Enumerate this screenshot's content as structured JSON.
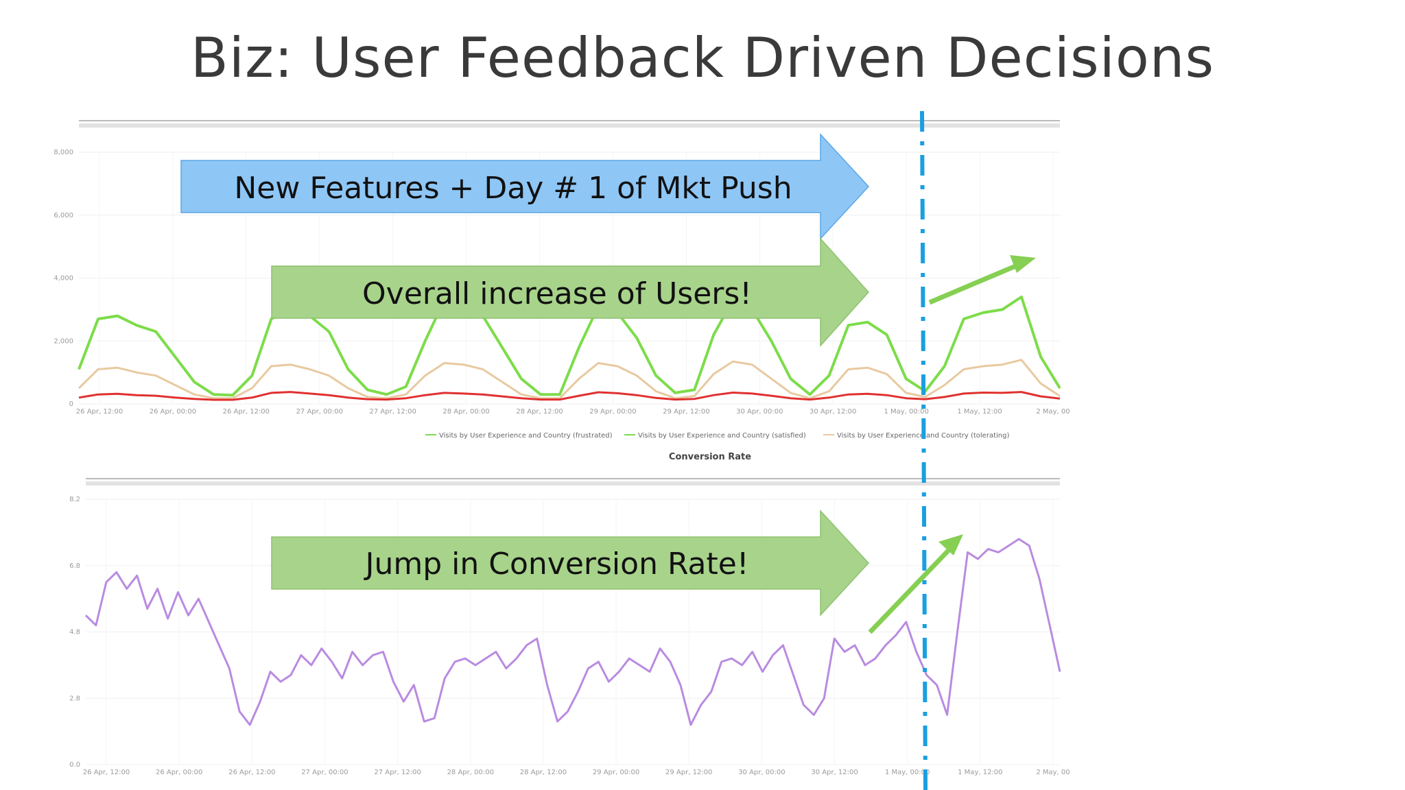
{
  "slide": {
    "title": "Biz: User Feedback Driven Decisions"
  },
  "callouts": [
    {
      "text": "New Features + Day # 1 of Mkt Push",
      "color": "#8ec6f5"
    },
    {
      "text": "Overall increase of Users!",
      "color": "#a8d38b"
    },
    {
      "text": "Jump in Conversion Rate!",
      "color": "#a8d38b"
    }
  ],
  "colors": {
    "frustrated": "#7ddc4a",
    "satisfied": "#e8c9a0",
    "tolerating": "#e03030",
    "conversion": "#b98be0",
    "marker": "#1a9fe0",
    "trend_arrow": "#86cf52"
  },
  "chart_data": [
    {
      "type": "line",
      "y_ticks": [
        "8,000",
        "6,000",
        "4,000",
        "2,000",
        "0"
      ],
      "ylim": [
        0,
        8000
      ],
      "x_ticks": [
        "26 Apr, 12:00",
        "26 Apr, 00:00",
        "26 Apr, 12:00",
        "27 Apr, 00:00",
        "27 Apr, 12:00",
        "28 Apr, 00:00",
        "28 Apr, 12:00",
        "29 Apr, 00:00",
        "29 Apr, 12:00",
        "30 Apr, 00:00",
        "30 Apr, 12:00",
        "1 May, 00:00",
        "1 May, 12:00",
        "2 May, 00"
      ],
      "legend": [
        "Visits by User Experience and Country (frustrated)",
        "Visits by User Experience and Country (satisfied)",
        "Visits by User Experience and Country (tolerating)"
      ],
      "series": [
        {
          "key": "frustrated",
          "values": [
            1100,
            2700,
            2800,
            2500,
            2300,
            1500,
            700,
            300,
            280,
            900,
            2700,
            3000,
            2800,
            2300,
            1100,
            450,
            300,
            550,
            2000,
            3300,
            3100,
            2800,
            1800,
            800,
            300,
            300,
            1800,
            3100,
            2900,
            2100,
            900,
            350,
            450,
            2200,
            3300,
            3000,
            2000,
            800,
            300,
            900,
            2500,
            2600,
            2200,
            800,
            400,
            1200,
            2700,
            2900,
            3000,
            3400,
            1500,
            500
          ]
        },
        {
          "key": "satisfied",
          "values": [
            500,
            1100,
            1150,
            1000,
            900,
            600,
            300,
            180,
            180,
            500,
            1200,
            1250,
            1100,
            900,
            500,
            220,
            180,
            300,
            900,
            1300,
            1250,
            1100,
            700,
            300,
            180,
            180,
            800,
            1300,
            1200,
            900,
            400,
            180,
            250,
            950,
            1350,
            1250,
            800,
            350,
            180,
            400,
            1100,
            1150,
            950,
            350,
            220,
            600,
            1100,
            1200,
            1250,
            1400,
            650,
            250
          ]
        },
        {
          "key": "tolerating",
          "values": [
            200,
            300,
            320,
            280,
            260,
            200,
            160,
            130,
            130,
            200,
            350,
            380,
            330,
            280,
            200,
            150,
            140,
            180,
            280,
            350,
            330,
            300,
            240,
            180,
            140,
            140,
            260,
            370,
            340,
            280,
            190,
            140,
            160,
            280,
            360,
            330,
            260,
            180,
            140,
            200,
            300,
            320,
            280,
            180,
            150,
            220,
            330,
            360,
            350,
            380,
            240,
            170
          ]
        }
      ]
    },
    {
      "type": "line",
      "subtitle": "Conversion Rate",
      "y_ticks": [
        "8.2",
        "6.8",
        "4.8",
        "2.8",
        "0.0"
      ],
      "ylim": [
        0,
        8
      ],
      "x_ticks": [
        "26 Apr, 12:00",
        "26 Apr, 00:00",
        "26 Apr, 12:00",
        "27 Apr, 00:00",
        "27 Apr, 12:00",
        "28 Apr, 00:00",
        "28 Apr, 12:00",
        "29 Apr, 00:00",
        "29 Apr, 12:00",
        "30 Apr, 00:00",
        "30 Apr, 12:00",
        "1 May, 00:00",
        "1 May, 12:00",
        "2 May, 00"
      ],
      "series": [
        {
          "key": "conversion",
          "values": [
            4.5,
            4.2,
            5.5,
            5.8,
            5.3,
            5.7,
            4.7,
            5.3,
            4.4,
            5.2,
            4.5,
            5.0,
            4.3,
            3.6,
            2.9,
            1.6,
            1.2,
            1.9,
            2.8,
            2.5,
            2.7,
            3.3,
            3.0,
            3.5,
            3.1,
            2.6,
            3.4,
            3.0,
            3.3,
            3.4,
            2.5,
            1.9,
            2.4,
            1.3,
            1.4,
            2.6,
            3.1,
            3.2,
            3.0,
            3.2,
            3.4,
            2.9,
            3.2,
            3.6,
            3.8,
            2.4,
            1.3,
            1.6,
            2.2,
            2.9,
            3.1,
            2.5,
            2.8,
            3.2,
            3.0,
            2.8,
            3.5,
            3.1,
            2.4,
            1.2,
            1.8,
            2.2,
            3.1,
            3.2,
            3.0,
            3.4,
            2.8,
            3.3,
            3.6,
            2.7,
            1.8,
            1.5,
            2.0,
            3.8,
            3.4,
            3.6,
            3.0,
            3.2,
            3.6,
            3.9,
            4.3,
            3.4,
            2.7,
            2.4,
            1.5,
            4.0,
            6.4,
            6.2,
            6.5,
            6.4,
            6.6,
            6.8,
            6.6,
            5.6,
            4.2,
            2.8
          ]
        }
      ]
    }
  ]
}
